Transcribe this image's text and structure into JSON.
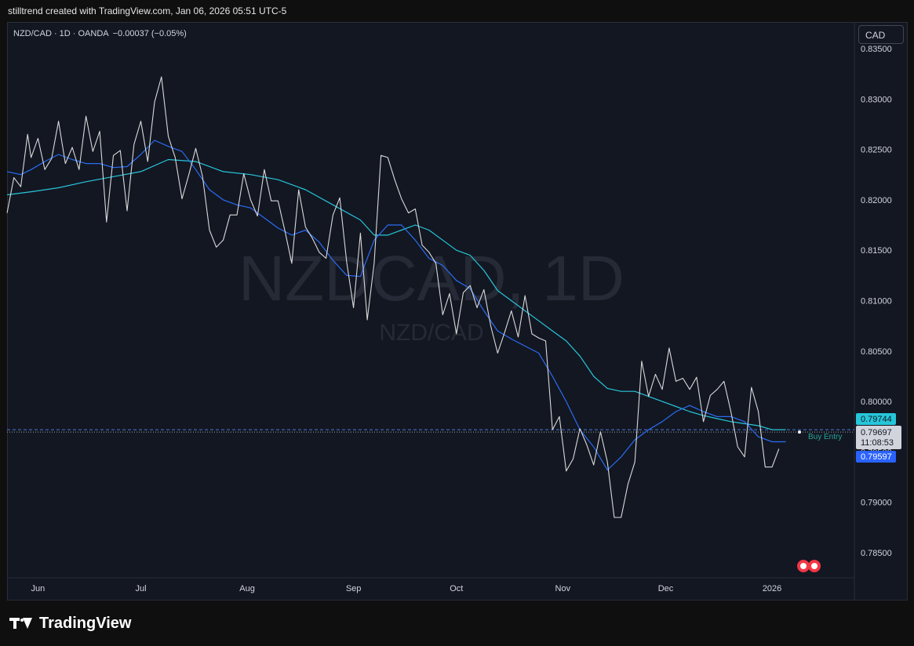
{
  "header": {
    "attribution": "stilltrend created with TradingView.com, Jan 06, 2026 05:51 UTC-5"
  },
  "legend": {
    "symbol_line": "NZD/CAD · 1D · OANDA",
    "change": "−0.00037 (−0.05%)"
  },
  "watermark": {
    "main": "NZDCAD, 1D",
    "sub": "NZD/CAD"
  },
  "currency_button": "CAD",
  "annotation": {
    "label": "Buy Entry",
    "price": 0.7972
  },
  "price_tags": {
    "ma_slow": {
      "value": "0.79744",
      "color": "#2bb3c9"
    },
    "last": {
      "value": "0.79697",
      "countdown": "11:08:53",
      "color": "#d1d4dc"
    },
    "ma_fast": {
      "value": "0.79597",
      "color": "#2962ff"
    }
  },
  "brand": {
    "name": "TradingView"
  },
  "colors": {
    "price": "#d9d9d9",
    "ma_fast": "#2a6df4",
    "ma_slow": "#26c6da",
    "bg": "#131722",
    "grid_text": "#d1d4dc"
  },
  "chart_data": {
    "type": "line",
    "title": "NZD/CAD · 1D · OANDA",
    "x_ticks": [
      "Jun",
      "Jul",
      "Aug",
      "Sep",
      "Oct",
      "Nov",
      "Dec",
      "2026"
    ],
    "x_tick_day": [
      2,
      32,
      63,
      94,
      124,
      155,
      185,
      216
    ],
    "y_ticks": [
      "0.83500",
      "0.83000",
      "0.82500",
      "0.82000",
      "0.81500",
      "0.81000",
      "0.80500",
      "0.80000",
      "0.79500",
      "0.79000",
      "0.78500"
    ],
    "ylim": [
      0.7838,
      0.8355
    ],
    "xlim": [
      -7,
      240
    ],
    "series": [
      {
        "key": "price",
        "day": [
          -7,
          -5,
          -3,
          -1,
          0,
          2,
          4,
          6,
          8,
          10,
          12,
          14,
          16,
          18,
          20,
          22,
          24,
          26,
          28,
          30,
          32,
          34,
          36,
          38,
          40,
          42,
          44,
          46,
          48,
          50,
          52,
          54,
          56,
          58,
          60,
          62,
          64,
          66,
          68,
          70,
          72,
          74,
          76,
          78,
          80,
          82,
          84,
          86,
          88,
          90,
          92,
          94,
          96,
          98,
          100,
          102,
          104,
          106,
          108,
          110,
          112,
          114,
          116,
          118,
          120,
          122,
          124,
          126,
          128,
          130,
          132,
          134,
          136,
          138,
          140,
          142,
          144,
          146,
          148,
          150,
          152,
          154,
          156,
          158,
          160,
          162,
          164,
          166,
          168,
          170,
          172,
          174,
          176,
          178,
          180,
          182,
          184,
          186,
          188,
          190,
          192,
          194,
          196,
          198,
          200,
          202,
          204,
          206,
          208,
          210,
          212,
          214,
          216,
          218
        ],
        "values": [
          0.8187,
          0.8222,
          0.8213,
          0.8265,
          0.8242,
          0.8261,
          0.823,
          0.8241,
          0.8278,
          0.8236,
          0.8252,
          0.823,
          0.8283,
          0.8248,
          0.8268,
          0.8178,
          0.8244,
          0.8249,
          0.8189,
          0.8255,
          0.8278,
          0.8238,
          0.8297,
          0.8322,
          0.8263,
          0.8242,
          0.8201,
          0.8225,
          0.8251,
          0.8223,
          0.817,
          0.8153,
          0.816,
          0.8185,
          0.8185,
          0.8226,
          0.82,
          0.8184,
          0.823,
          0.8199,
          0.8199,
          0.8169,
          0.8137,
          0.821,
          0.8173,
          0.8162,
          0.8148,
          0.8142,
          0.8185,
          0.8202,
          0.8138,
          0.8093,
          0.8167,
          0.8081,
          0.8137,
          0.8244,
          0.8242,
          0.822,
          0.8201,
          0.8187,
          0.8191,
          0.8155,
          0.8148,
          0.8137,
          0.8086,
          0.8107,
          0.8067,
          0.8108,
          0.8115,
          0.8093,
          0.8111,
          0.8075,
          0.8048,
          0.8068,
          0.809,
          0.8064,
          0.8105,
          0.8067,
          0.8063,
          0.806,
          0.7972,
          0.7985,
          0.7931,
          0.7943,
          0.7973,
          0.7957,
          0.7937,
          0.797,
          0.794,
          0.7885,
          0.7885,
          0.7918,
          0.794,
          0.804,
          0.8005,
          0.8027,
          0.8012,
          0.8053,
          0.802,
          0.8023,
          0.8012,
          0.8024,
          0.798,
          0.8006,
          0.8012,
          0.802,
          0.799,
          0.7955,
          0.7945,
          0.8014,
          0.799,
          0.7935,
          0.7935,
          0.7953,
          0.797
        ]
      },
      {
        "key": "ma_fast",
        "day": [
          -7,
          -3,
          0,
          4,
          8,
          12,
          16,
          20,
          24,
          28,
          32,
          36,
          40,
          44,
          48,
          52,
          56,
          60,
          64,
          68,
          72,
          76,
          80,
          84,
          88,
          92,
          96,
          100,
          104,
          108,
          112,
          116,
          120,
          124,
          128,
          132,
          136,
          140,
          144,
          148,
          152,
          156,
          160,
          164,
          168,
          172,
          176,
          180,
          184,
          188,
          192,
          196,
          200,
          204,
          208,
          212,
          216,
          220
        ],
        "values": [
          0.8228,
          0.8225,
          0.823,
          0.8238,
          0.8245,
          0.824,
          0.8236,
          0.8236,
          0.8232,
          0.8233,
          0.8245,
          0.8259,
          0.8253,
          0.8248,
          0.823,
          0.821,
          0.82,
          0.8195,
          0.8192,
          0.8182,
          0.8172,
          0.8165,
          0.817,
          0.8158,
          0.814,
          0.8125,
          0.8124,
          0.816,
          0.8175,
          0.8175,
          0.816,
          0.8142,
          0.8135,
          0.812,
          0.8112,
          0.809,
          0.807,
          0.8062,
          0.8055,
          0.8048,
          0.8025,
          0.8,
          0.7972,
          0.7955,
          0.7932,
          0.7945,
          0.7962,
          0.7972,
          0.798,
          0.799,
          0.7996,
          0.799,
          0.7985,
          0.7985,
          0.798,
          0.7965,
          0.796,
          0.796
        ]
      },
      {
        "key": "ma_slow",
        "day": [
          -7,
          0,
          8,
          16,
          24,
          32,
          40,
          48,
          56,
          64,
          72,
          80,
          88,
          96,
          100,
          104,
          108,
          112,
          116,
          120,
          124,
          128,
          132,
          136,
          140,
          144,
          148,
          152,
          156,
          160,
          164,
          168,
          172,
          176,
          180,
          184,
          188,
          192,
          196,
          200,
          204,
          208,
          212,
          216,
          220
        ],
        "values": [
          0.8205,
          0.8208,
          0.8212,
          0.8218,
          0.8223,
          0.8228,
          0.824,
          0.8238,
          0.8228,
          0.8225,
          0.822,
          0.821,
          0.8195,
          0.818,
          0.8165,
          0.8165,
          0.817,
          0.8175,
          0.817,
          0.816,
          0.815,
          0.8145,
          0.813,
          0.811,
          0.81,
          0.809,
          0.808,
          0.807,
          0.806,
          0.8045,
          0.8025,
          0.8013,
          0.801,
          0.801,
          0.8005,
          0.8,
          0.7995,
          0.799,
          0.7986,
          0.7983,
          0.798,
          0.7978,
          0.7976,
          0.7972,
          0.7972
        ]
      }
    ]
  }
}
